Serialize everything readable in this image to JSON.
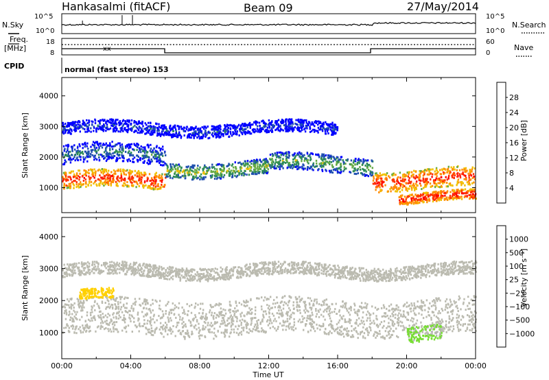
{
  "header": {
    "station": "Hankasalmi (fitACF)",
    "beam": "Beam 09",
    "date": "27/May/2014"
  },
  "top_panel": {
    "noise_sky_label": "N.Sky",
    "noise_search_label": "N.Search",
    "noise_ticks": [
      "10^5",
      "10^0"
    ],
    "freq_label_1": "Freq.",
    "freq_label_2": "[MHz]",
    "freq_ticks": [
      "18",
      "8"
    ],
    "nave_label": "Nave",
    "nave_ticks": [
      "60",
      "0"
    ],
    "cpid_label": "CPID",
    "cpid_text": "normal (fast stereo) 153"
  },
  "axes": {
    "x_label": "Time UT",
    "x_ticks": [
      "00:00",
      "04:00",
      "08:00",
      "12:00",
      "16:00",
      "20:00",
      "00:00"
    ],
    "y_label": "Slant Range [km]",
    "y_ticks": [
      "4000",
      "3000",
      "2000",
      "1000"
    ]
  },
  "colors": {
    "power_scale": [
      "#0000ff",
      "#1f4fb0",
      "#2e8b57",
      "#66aa44",
      "#f0c000",
      "#ff8c00",
      "#ff3000",
      "#ff0000"
    ],
    "velocity_scale": [
      "#ff0000",
      "#ff7700",
      "#ffaa00",
      "#ffd000",
      "#b4b4b4",
      "#77dd33",
      "#33aa33",
      "#1c6a9c",
      "#2050c0"
    ],
    "ground_scatter": "#bbbbb0"
  },
  "power_colorbar": {
    "label": "Power [dB]",
    "ticks": [
      "28",
      "24",
      "20",
      "16",
      "12",
      "8",
      "4"
    ]
  },
  "velocity_colorbar": {
    "label": "Velocity [m s⁻¹]",
    "ticks": [
      "1000",
      "500",
      "100",
      "25",
      "−25",
      "−100",
      "−500",
      "−1000"
    ]
  },
  "chart_data": [
    {
      "type": "heatmap",
      "title": "Power",
      "xlabel": "Time UT",
      "ylabel": "Slant Range [km]",
      "xlim": [
        0,
        24
      ],
      "ylim": [
        180,
        4600
      ],
      "color_label": "Power [dB]",
      "color_range": [
        0,
        32
      ],
      "scatter_bands": [
        {
          "t0": 0,
          "t1": 6,
          "r_center": 1250,
          "r_width": 350,
          "power": 28
        },
        {
          "t0": 6,
          "t1": 12,
          "r_center": 1650,
          "r_width": 300,
          "power": 16
        },
        {
          "t0": 12,
          "t1": 18,
          "r_center": 1800,
          "r_width": 350,
          "power": 14
        },
        {
          "t0": 18,
          "t1": 24,
          "r_center": 1300,
          "r_width": 400,
          "power": 28
        },
        {
          "t0": 19.5,
          "t1": 24,
          "r_center": 700,
          "r_width": 200,
          "power": 30
        },
        {
          "t0": 0,
          "t1": 6,
          "r_center": 2100,
          "r_width": 400,
          "power": 10
        },
        {
          "t0": 0,
          "t1": 16,
          "r_center": 2950,
          "r_width": 250,
          "power": 6
        }
      ]
    },
    {
      "type": "heatmap",
      "title": "Velocity",
      "xlabel": "Time UT",
      "ylabel": "Slant Range [km]",
      "xlim": [
        0,
        24
      ],
      "ylim": [
        180,
        4600
      ],
      "color_label": "Velocity [m s⁻¹]",
      "color_range": [
        -1000,
        1000
      ],
      "scatter_bands": [
        {
          "t0": 0,
          "t1": 24,
          "r_center": 1500,
          "r_width": 700,
          "velocity": 0
        },
        {
          "t0": 1,
          "t1": 3,
          "r_center": 2150,
          "r_width": 200,
          "velocity": -300
        },
        {
          "t0": 20,
          "t1": 22,
          "r_center": 1000,
          "r_width": 300,
          "velocity": 150
        },
        {
          "t0": 0,
          "t1": 24,
          "r_center": 2950,
          "r_width": 250,
          "velocity": 0
        }
      ]
    }
  ]
}
